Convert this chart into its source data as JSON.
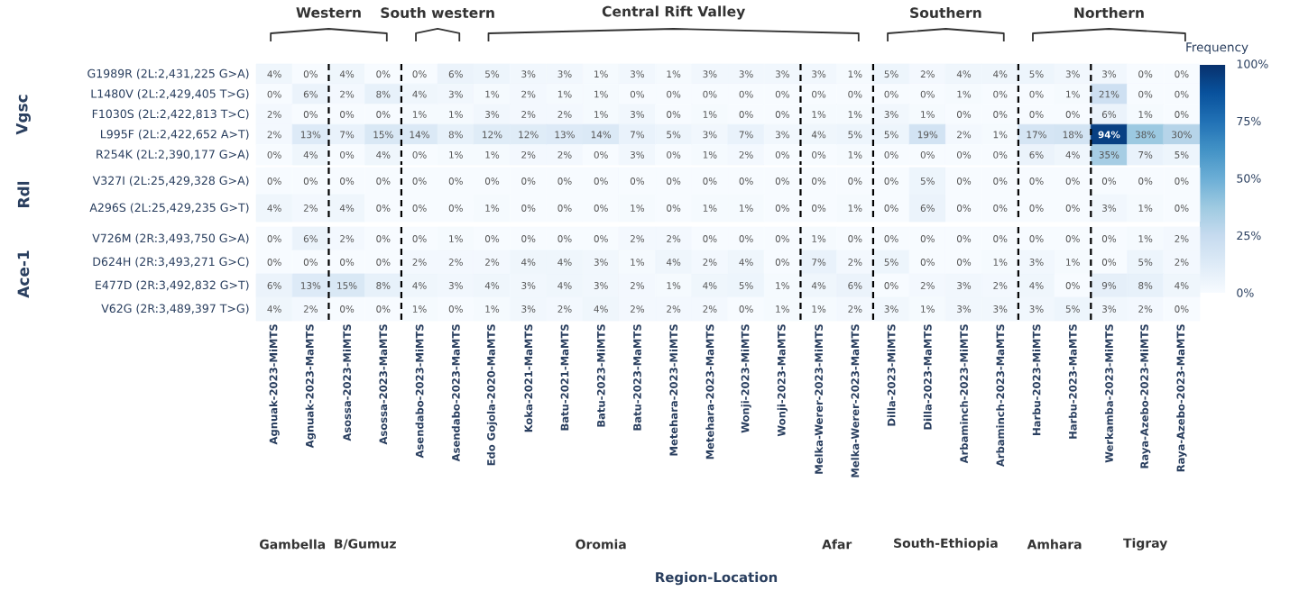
{
  "chart_data": [
    {
      "type": "heatmap",
      "ylabel": "Vgsc",
      "categories": [
        null,
        null,
        null,
        null,
        null,
        null,
        null,
        null,
        null,
        null,
        null,
        null,
        null,
        null,
        null,
        null,
        null,
        null,
        null,
        null,
        null,
        null,
        null,
        null,
        null,
        null
      ],
      "y_categories": [
        "G1989R (2L:2,431,225 G>A)",
        "L1480V (2L:2,429,405 T>G)",
        "F1030S (2L:2,422,813 T>C)",
        "L995F (2L:2,422,652 A>T)",
        "R254K (2L:2,390,177 G>A)"
      ],
      "cells": [
        [
          4,
          0,
          4,
          0,
          0,
          6,
          5,
          3,
          3,
          1,
          3,
          1,
          3,
          3,
          3,
          3,
          1,
          5,
          2,
          4,
          4,
          5,
          3,
          3,
          0,
          0
        ],
        [
          0,
          6,
          2,
          8,
          4,
          3,
          1,
          2,
          1,
          1,
          0,
          0,
          0,
          0,
          0,
          0,
          0,
          0,
          0,
          1,
          0,
          0,
          1,
          21,
          0,
          0
        ],
        [
          2,
          0,
          0,
          0,
          1,
          1,
          3,
          2,
          2,
          1,
          3,
          0,
          1,
          0,
          0,
          1,
          1,
          3,
          1,
          0,
          0,
          0,
          0,
          6,
          1,
          0
        ],
        [
          2,
          13,
          7,
          15,
          14,
          8,
          12,
          12,
          13,
          14,
          7,
          5,
          3,
          7,
          3,
          4,
          5,
          5,
          19,
          2,
          1,
          17,
          18,
          94,
          38,
          30
        ],
        [
          0,
          4,
          0,
          4,
          0,
          1,
          1,
          2,
          2,
          0,
          3,
          0,
          1,
          2,
          0,
          0,
          1,
          0,
          0,
          0,
          0,
          6,
          4,
          35,
          7,
          5
        ]
      ],
      "cell_labels": [
        [
          "4%",
          "0%",
          "4%",
          "0%",
          "0%",
          "6%",
          "5%",
          "3%",
          "3%",
          "1%",
          "3%",
          "1%",
          "3%",
          "3%",
          "3%",
          "3%",
          "1%",
          "5%",
          "2%",
          "4%",
          "4%",
          "5%",
          "3%",
          "3%",
          "0%",
          "0%"
        ],
        [
          "0%",
          "6%",
          "2%",
          "8%",
          "4%",
          "3%",
          "1%",
          "2%",
          "1%",
          "1%",
          "0%",
          "0%",
          "0%",
          "0%",
          "0%",
          "0%",
          "0%",
          "0%",
          "0%",
          "1%",
          "0%",
          "0%",
          "1%",
          "21%",
          "0%",
          "0%"
        ],
        [
          "2%",
          "0%",
          "0%",
          "0%",
          "1%",
          "1%",
          "3%",
          "2%",
          "2%",
          "1%",
          "3%",
          "0%",
          "1%",
          "0%",
          "0%",
          "1%",
          "1%",
          "3%",
          "1%",
          "0%",
          "0%",
          "0%",
          "0%",
          "6%",
          "1%",
          "0%"
        ],
        [
          "2%",
          "13%",
          "7%",
          "15%",
          "14%",
          "8%",
          "12%",
          "12%",
          "13%",
          "14%",
          "7%",
          "5%",
          "3%",
          "7%",
          "3%",
          "4%",
          "5%",
          "5%",
          "19%",
          "2%",
          "1%",
          "17%",
          "18%",
          "94%",
          "38%",
          "30%"
        ],
        [
          "0%",
          "4%",
          "0%",
          "4%",
          "0%",
          "1%",
          "1%",
          "2%",
          "2%",
          "0%",
          "3%",
          "0%",
          "1%",
          "2%",
          "0%",
          "0%",
          "1%",
          "0%",
          "0%",
          "0%",
          "0%",
          "6%",
          "4%",
          "35%",
          "7%",
          "5%"
        ]
      ],
      "clim": [
        0,
        100
      ],
      "clabel": "Frequency",
      "cticks": [
        {
          "value": 0,
          "label": "0%"
        },
        {
          "value": 25,
          "label": "25%"
        },
        {
          "value": 50,
          "label": "50%"
        },
        {
          "value": 75,
          "label": "75%"
        },
        {
          "value": 100,
          "label": "100%"
        }
      ],
      "annotations": [
        "Western",
        "South western",
        "Central Rift Valley",
        "Southern",
        "Northern"
      ]
    },
    {
      "type": "heatmap",
      "ylabel": "Rdl",
      "categories": [
        null,
        null,
        null,
        null,
        null,
        null,
        null,
        null,
        null,
        null,
        null,
        null,
        null,
        null,
        null,
        null,
        null,
        null,
        null,
        null,
        null,
        null,
        null,
        null,
        null,
        null
      ],
      "y_categories": [
        "V327I (2L:25,429,328 G>A)",
        "A296S (2L:25,429,235 G>T)"
      ],
      "cells": [
        [
          0,
          0,
          0,
          0,
          0,
          0,
          0,
          0,
          0,
          0,
          0,
          0,
          0,
          0,
          0,
          0,
          0,
          0,
          5,
          0,
          0,
          0,
          0,
          0,
          0,
          0
        ],
        [
          4,
          2,
          4,
          0,
          0,
          0,
          1,
          0,
          0,
          0,
          1,
          0,
          1,
          1,
          0,
          0,
          1,
          0,
          6,
          0,
          0,
          0,
          0,
          3,
          1,
          0
        ]
      ],
      "cell_labels": [
        [
          "0%",
          "0%",
          "0%",
          "0%",
          "0%",
          "0%",
          "0%",
          "0%",
          "0%",
          "0%",
          "0%",
          "0%",
          "0%",
          "0%",
          "0%",
          "0%",
          "0%",
          "0%",
          "5%",
          "0%",
          "0%",
          "0%",
          "0%",
          "0%",
          "0%",
          "0%"
        ],
        [
          "4%",
          "2%",
          "4%",
          "0%",
          "0%",
          "0%",
          "1%",
          "0%",
          "0%",
          "0%",
          "1%",
          "0%",
          "1%",
          "1%",
          "0%",
          "0%",
          "1%",
          "0%",
          "6%",
          "0%",
          "0%",
          "0%",
          "0%",
          "3%",
          "1%",
          "0%"
        ]
      ]
    },
    {
      "type": "heatmap",
      "ylabel": "Ace-1",
      "xlabel": "Region-Location",
      "categories": [
        "Agnuak-2023-MiMTS",
        "Agnuak-2023-MaMTS",
        "Asossa-2023-MiMTS",
        "Asossa-2023-MaMTS",
        "Asendabo-2023-MiMTS",
        "Asendabo-2023-MaMTS",
        "Edo Gojola-2020-MaMTS",
        "Koka-2021-MaMTS",
        "Batu-2021-MaMTS",
        "Batu-2023-MiMTS",
        "Batu-2023-MaMTS",
        "Metehara-2023-MiMTS",
        "Metehara-2023-MaMTS",
        "Wonji-2023-MiMTS",
        "Wonji-2023-MaMTS",
        "Melka-Werer-2023-MiMTS",
        "Melka-Werer-2023-MaMTS",
        "Dilla-2023-MiMTS",
        "Dilla-2023-MaMTS",
        "Arbaminch-2023-MiMTS",
        "Arbaminch-2023-MaMTS",
        "Harbu-2023-MiMTS",
        "Harbu-2023-MaMTS",
        "Werkamba-2023-MiMTS",
        "Raya-Azebo-2023-MiMTS",
        "Raya-Azebo-2023-MaMTS"
      ],
      "y_categories": [
        "V726M (2R:3,493,750 G>A)",
        "D624H (2R:3,493,271 G>C)",
        "E477D (2R:3,492,832 G>T)",
        "V62G (2R:3,489,397 T>G)"
      ],
      "cells": [
        [
          0,
          6,
          2,
          0,
          0,
          1,
          0,
          0,
          0,
          0,
          2,
          2,
          0,
          0,
          0,
          1,
          0,
          0,
          0,
          0,
          0,
          0,
          0,
          0,
          1,
          2
        ],
        [
          0,
          0,
          0,
          0,
          2,
          2,
          2,
          4,
          4,
          3,
          1,
          4,
          2,
          4,
          0,
          7,
          2,
          5,
          0,
          0,
          1,
          3,
          1,
          0,
          5,
          2
        ],
        [
          6,
          13,
          15,
          8,
          4,
          3,
          4,
          3,
          4,
          3,
          2,
          1,
          4,
          5,
          1,
          4,
          6,
          0,
          2,
          3,
          2,
          4,
          0,
          9,
          8,
          4
        ],
        [
          4,
          2,
          0,
          0,
          1,
          0,
          1,
          3,
          2,
          4,
          2,
          2,
          2,
          0,
          1,
          1,
          2,
          3,
          1,
          3,
          3,
          3,
          5,
          3,
          2,
          0
        ]
      ],
      "cell_labels": [
        [
          "0%",
          "6%",
          "2%",
          "0%",
          "0%",
          "1%",
          "0%",
          "0%",
          "0%",
          "0%",
          "2%",
          "2%",
          "0%",
          "0%",
          "0%",
          "1%",
          "0%",
          "0%",
          "0%",
          "0%",
          "0%",
          "0%",
          "0%",
          "0%",
          "1%",
          "2%"
        ],
        [
          "0%",
          "0%",
          "0%",
          "0%",
          "2%",
          "2%",
          "2%",
          "4%",
          "4%",
          "3%",
          "1%",
          "4%",
          "2%",
          "4%",
          "0%",
          "7%",
          "2%",
          "5%",
          "0%",
          "0%",
          "1%",
          "3%",
          "1%",
          "0%",
          "5%",
          "2%"
        ],
        [
          "6%",
          "13%",
          "15%",
          "8%",
          "4%",
          "3%",
          "4%",
          "3%",
          "4%",
          "3%",
          "2%",
          "1%",
          "4%",
          "5%",
          "1%",
          "4%",
          "6%",
          "0%",
          "2%",
          "3%",
          "2%",
          "4%",
          "0%",
          "9%",
          "8%",
          "4%"
        ],
        [
          "4%",
          "2%",
          "0%",
          "0%",
          "1%",
          "0%",
          "1%",
          "3%",
          "2%",
          "4%",
          "2%",
          "2%",
          "2%",
          "0%",
          "1%",
          "1%",
          "2%",
          "3%",
          "1%",
          "3%",
          "3%",
          "3%",
          "5%",
          "3%",
          "2%",
          "0%"
        ]
      ],
      "annotations": [
        "Gambella",
        "B/Gumuz",
        "Oromia",
        "Afar",
        "South-Ethiopia",
        "Amhara",
        "Tigray"
      ]
    }
  ]
}
